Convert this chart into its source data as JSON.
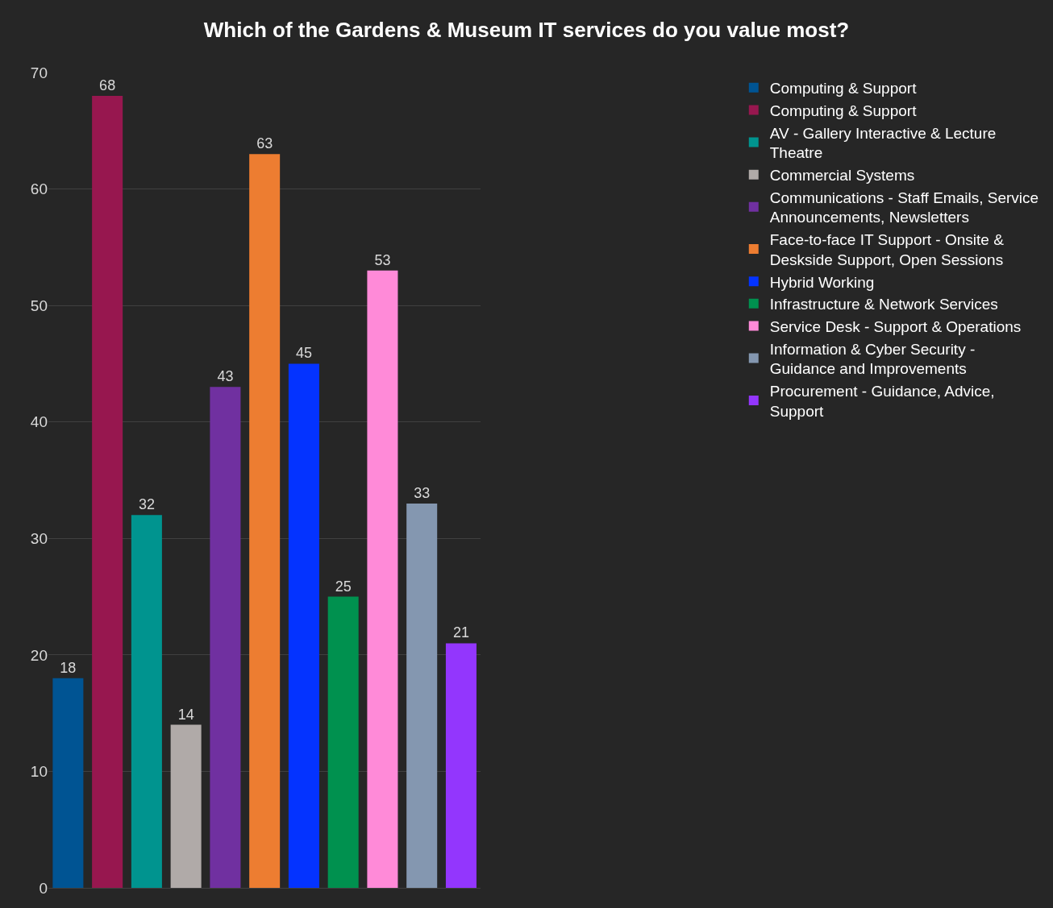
{
  "chart_data": {
    "type": "bar",
    "title": "Which of the Gardens & Museum IT services do you value most?",
    "categories": [
      null,
      null,
      null,
      null,
      null,
      null,
      null,
      null,
      null,
      null,
      null
    ],
    "series": [
      {
        "name": "Computing & Support",
        "color": "#005493",
        "values": [
          18,
          null,
          null,
          null,
          null,
          null,
          null,
          null,
          null,
          null,
          null
        ]
      },
      {
        "name": "Computing & Support",
        "color": "#97174f",
        "values": [
          null,
          68,
          null,
          null,
          null,
          null,
          null,
          null,
          null,
          null,
          null
        ]
      },
      {
        "name": "AV - Gallery Interactive & Lecture Theatre",
        "color": "#00948f",
        "values": [
          null,
          null,
          32,
          null,
          null,
          null,
          null,
          null,
          null,
          null,
          null
        ]
      },
      {
        "name": "Commercial Systems",
        "color": "#b0aaa8",
        "values": [
          null,
          null,
          null,
          14,
          null,
          null,
          null,
          null,
          null,
          null,
          null
        ]
      },
      {
        "name": "Communications - Staff Emails, Service Announcements, Newsletters",
        "color": "#7030a0",
        "values": [
          null,
          null,
          null,
          null,
          43,
          null,
          null,
          null,
          null,
          null,
          null
        ]
      },
      {
        "name": "Face-to-face IT Support - Onsite & Deskside Support, Open Sessions",
        "color": "#ed7d31",
        "values": [
          null,
          null,
          null,
          null,
          null,
          63,
          null,
          null,
          null,
          null,
          null
        ]
      },
      {
        "name": "Hybrid Working",
        "color": "#0433ff",
        "values": [
          null,
          null,
          null,
          null,
          null,
          null,
          45,
          null,
          null,
          null,
          null
        ]
      },
      {
        "name": "Infrastructure & Network Services",
        "color": "#00914f",
        "values": [
          null,
          null,
          null,
          null,
          null,
          null,
          null,
          25,
          null,
          null,
          null
        ]
      },
      {
        "name": "Service Desk - Support & Operations",
        "color": "#ff8ad8",
        "values": [
          null,
          null,
          null,
          null,
          null,
          null,
          null,
          null,
          53,
          null,
          null
        ]
      },
      {
        "name": "Information & Cyber Security - Guidance and Improvements",
        "color": "#8497b0",
        "values": [
          null,
          null,
          null,
          null,
          null,
          null,
          null,
          null,
          null,
          33,
          null
        ]
      },
      {
        "name": "Procurement - Guidance, Advice, Support",
        "color": "#9336fd",
        "values": [
          null,
          null,
          null,
          null,
          null,
          null,
          null,
          null,
          null,
          null,
          21
        ]
      }
    ],
    "ylim": [
      0,
      70
    ],
    "yticks": [
      0,
      10,
      20,
      30,
      40,
      50,
      60,
      70
    ],
    "grid": "y",
    "legend": "right",
    "data_labels": true,
    "tick_labels": "y"
  }
}
